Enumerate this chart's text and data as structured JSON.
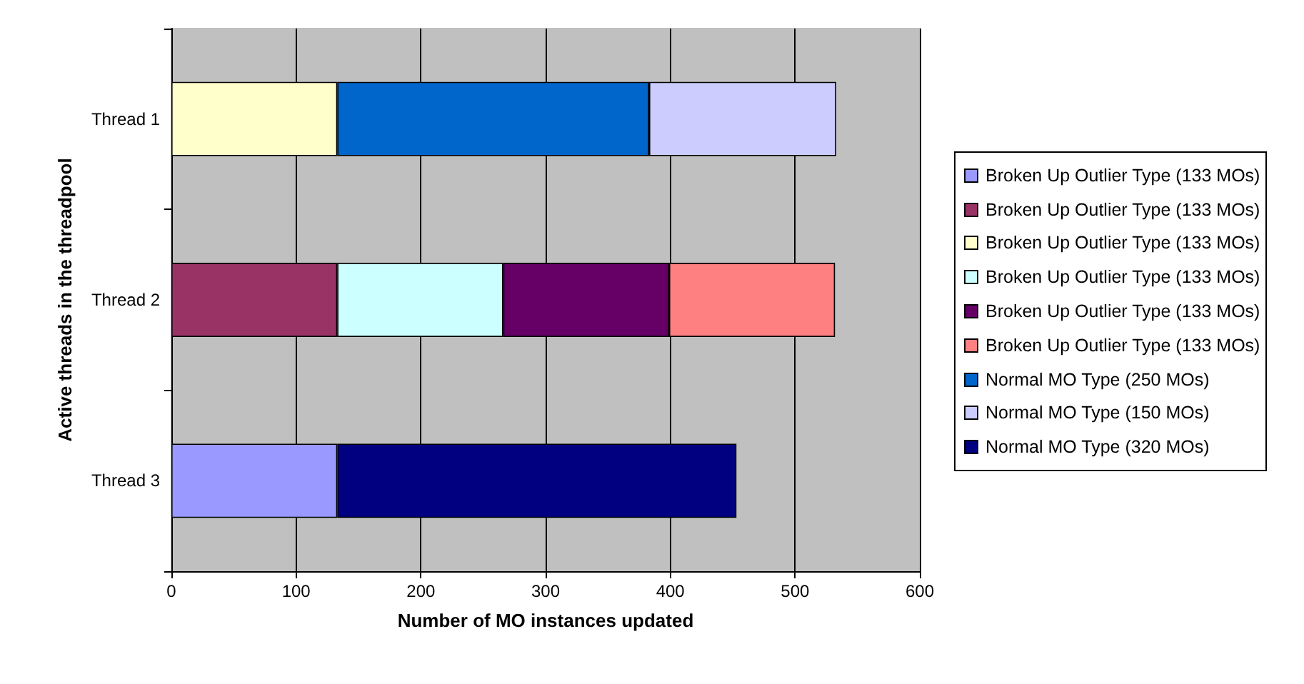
{
  "chart_data": {
    "type": "bar",
    "orientation": "horizontal",
    "stacked": true,
    "xlabel": "Number of MO instances updated",
    "ylabel": "Active threads in the threadpool",
    "categories": [
      "Thread 1",
      "Thread 2",
      "Thread 3"
    ],
    "series": [
      {
        "name": "Broken Up Outlier Type (133 MOs)",
        "color": "#9999ff",
        "values": [
          null,
          null,
          133
        ]
      },
      {
        "name": "Broken Up Outlier Type (133 MOs)",
        "color": "#993366",
        "values": [
          null,
          133,
          null
        ]
      },
      {
        "name": "Broken Up Outlier Type (133 MOs)",
        "color": "#ffffcc",
        "values": [
          133,
          null,
          null
        ]
      },
      {
        "name": "Broken Up Outlier Type (133 MOs)",
        "color": "#ccffff",
        "values": [
          null,
          133,
          null
        ]
      },
      {
        "name": "Broken Up Outlier Type (133 MOs)",
        "color": "#660066",
        "values": [
          null,
          133,
          null
        ]
      },
      {
        "name": "Broken Up Outlier Type (133 MOs)",
        "color": "#ff8080",
        "values": [
          null,
          133,
          null
        ]
      },
      {
        "name": "Normal MO Type (250 MOs)",
        "color": "#0066cc",
        "values": [
          250,
          null,
          null
        ]
      },
      {
        "name": "Normal MO Type (150 MOs)",
        "color": "#ccccff",
        "values": [
          150,
          null,
          null
        ]
      },
      {
        "name": "Normal MO Type (320 MOs)",
        "color": "#000080",
        "values": [
          null,
          null,
          320
        ]
      }
    ],
    "xlim": [
      0,
      600
    ],
    "xticks": [
      0,
      100,
      200,
      300,
      400,
      500,
      600
    ],
    "grid": "x",
    "legend": "right"
  }
}
